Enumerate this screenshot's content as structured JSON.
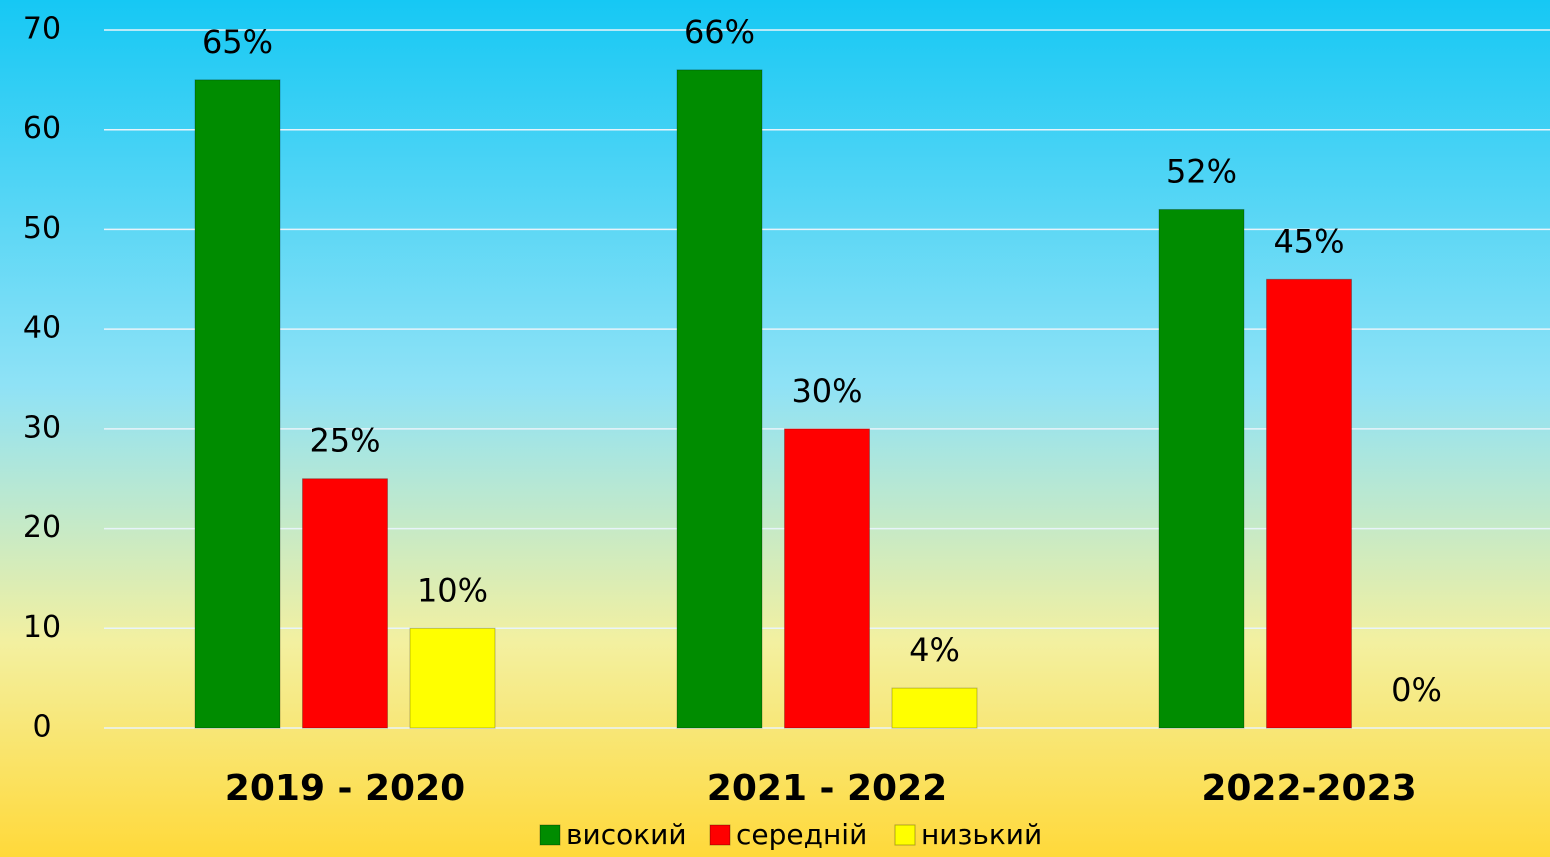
{
  "chart_data": {
    "type": "bar",
    "categories": [
      "2019 - 2020",
      "2021 - 2022",
      "2022-2023"
    ],
    "series": [
      {
        "name": "високий",
        "color": "#008c00",
        "values": [
          65,
          66,
          52
        ],
        "value_labels": [
          "65%",
          "66%",
          "52%"
        ]
      },
      {
        "name": "середній",
        "color": "#ff0000",
        "values": [
          25,
          30,
          45
        ],
        "value_labels": [
          "25%",
          "30%",
          "45%"
        ]
      },
      {
        "name": "низький",
        "color": "#ffff00",
        "values": [
          10,
          4,
          0
        ],
        "value_labels": [
          "10%",
          "4%",
          "0%"
        ]
      }
    ],
    "ylim": [
      0,
      70
    ],
    "yticks": [
      0,
      10,
      20,
      30,
      40,
      50,
      60,
      70
    ],
    "grid": true,
    "legend": "bottom"
  }
}
